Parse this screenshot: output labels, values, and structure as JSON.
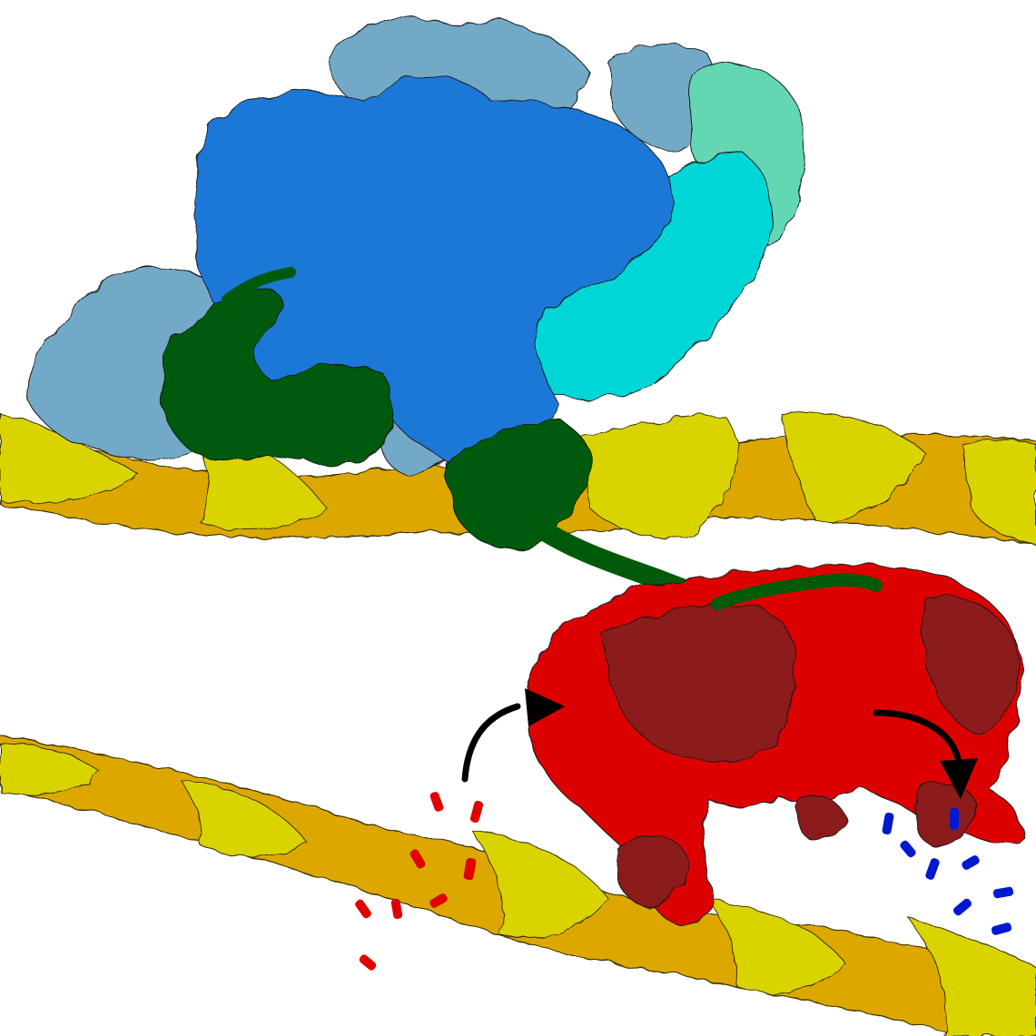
{
  "image": {
    "subject": "protein-dna-illustration"
  },
  "palette": {
    "background": "#ffffff",
    "dna_light": "#d9d400",
    "dna_dark": "#dca800",
    "protein_blue_main": "#1c78d6",
    "protein_blue_grey": "#72a9c6",
    "protein_cyan": "#04d6d6",
    "protein_teal": "#64d6b4",
    "protein_green": "#005a0a",
    "protein_red": "#dc0000",
    "protein_dark_red": "#8c1a1a",
    "nucleotide_red": "#e00000",
    "nucleotide_blue": "#0018d0",
    "arrow": "#000000",
    "outline": "#1a1a1a"
  }
}
